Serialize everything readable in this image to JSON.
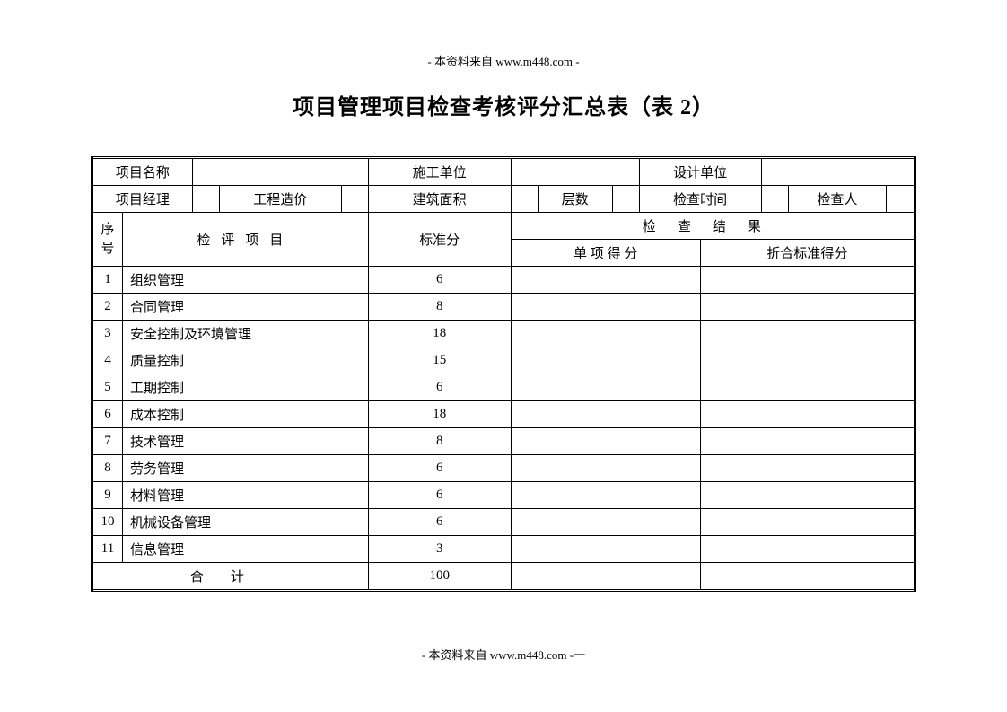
{
  "header_note": "- 本资料来自 www.m448.com -",
  "title": "项目管理项目检查考核评分汇总表（表 2）",
  "footer_note": "- 本资料来自 www.m448.com -一",
  "info_labels": {
    "project_name": "项目名称",
    "construction_unit": "施工单位",
    "design_unit": "设计单位",
    "project_manager": "项目经理",
    "project_cost": "工程造价",
    "building_area": "建筑面积",
    "floors": "层数",
    "check_time": "检查时间",
    "inspector": "检查人"
  },
  "table_headers": {
    "seq": "序号",
    "item": "检评项目",
    "standard_score": "标准分",
    "check_result": "检查结果",
    "single_score": "单 项 得 分",
    "converted_score": "折合标准得分",
    "total": "合计"
  },
  "rows": [
    {
      "seq": "1",
      "item": "组织管理",
      "score": "6"
    },
    {
      "seq": "2",
      "item": "合同管理",
      "score": "8"
    },
    {
      "seq": "3",
      "item": "安全控制及环境管理",
      "score": "18"
    },
    {
      "seq": "4",
      "item": "质量控制",
      "score": "15"
    },
    {
      "seq": "5",
      "item": "工期控制",
      "score": "6"
    },
    {
      "seq": "6",
      "item": "成本控制",
      "score": "18"
    },
    {
      "seq": "7",
      "item": "技术管理",
      "score": "8"
    },
    {
      "seq": "8",
      "item": "劳务管理",
      "score": "6"
    },
    {
      "seq": "9",
      "item": "材料管理",
      "score": "6"
    },
    {
      "seq": "10",
      "item": "机械设备管理",
      "score": "6"
    },
    {
      "seq": "11",
      "item": "信息管理",
      "score": "3"
    }
  ],
  "total_score": "100"
}
